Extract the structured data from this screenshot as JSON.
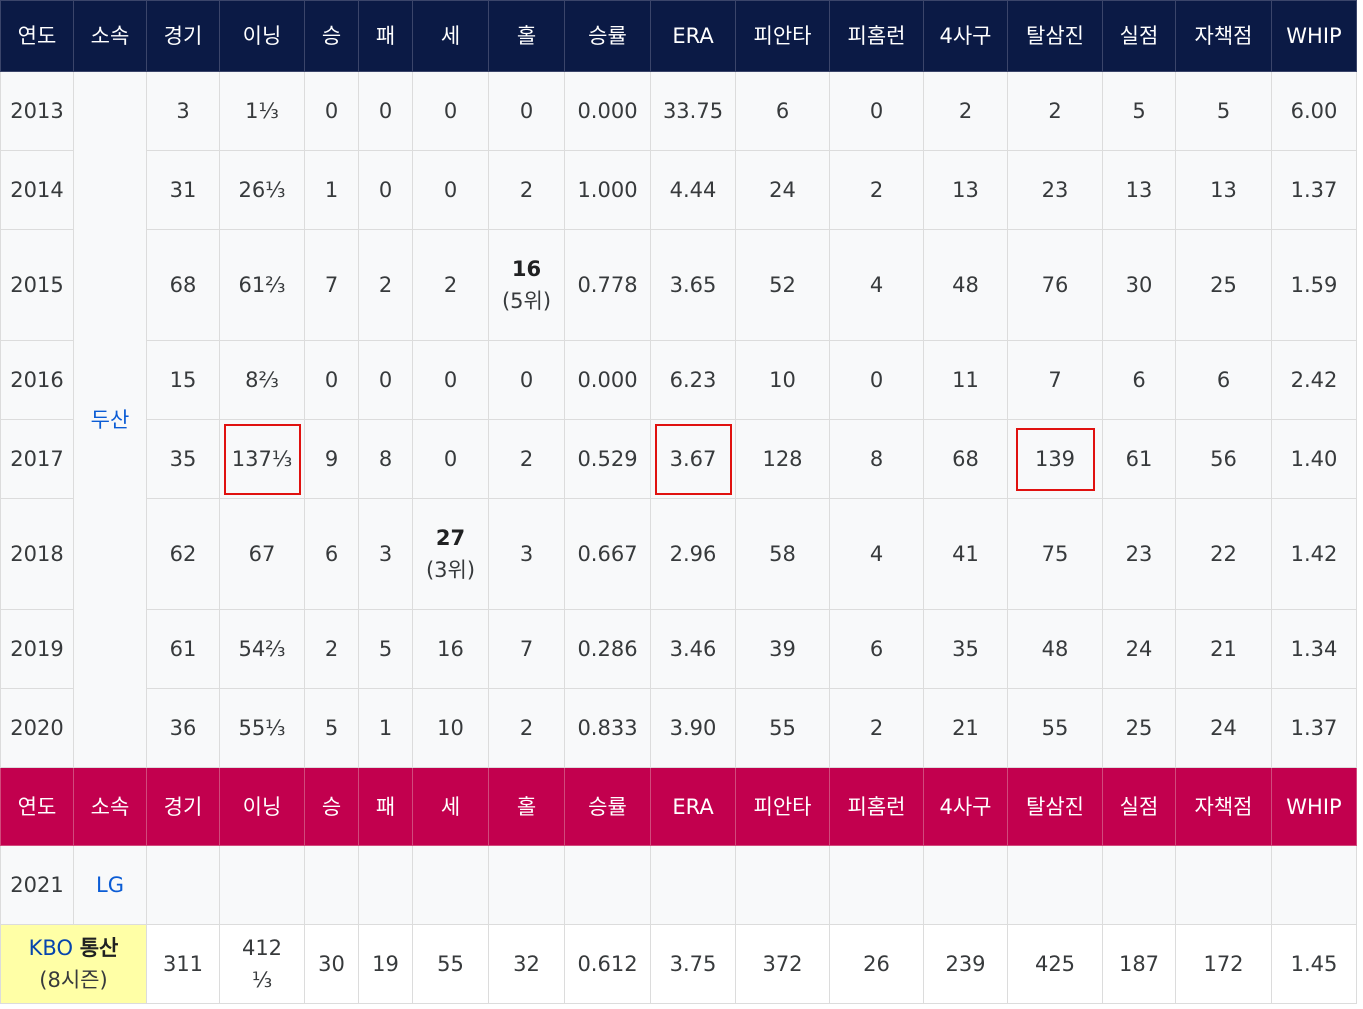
{
  "headers": [
    "연도",
    "소속",
    "경기",
    "이닝",
    "승",
    "패",
    "세",
    "홀",
    "승률",
    "ERA",
    "피안타",
    "피홈런",
    "4사구",
    "탈삼진",
    "실점",
    "자책점",
    "WHIP"
  ],
  "team_doosan": "두산",
  "team_lg": "LG",
  "rows": [
    {
      "year": "2013",
      "g": "3",
      "ip": "1⅓",
      "w": "0",
      "l": "0",
      "sv": "0",
      "hld_num": "0",
      "hld_rank": "",
      "pct": "0.000",
      "era": "33.75",
      "h": "6",
      "hr": "0",
      "bb": "2",
      "so": "2",
      "r": "5",
      "er": "5",
      "whip": "6.00"
    },
    {
      "year": "2014",
      "g": "31",
      "ip": "26⅓",
      "w": "1",
      "l": "0",
      "sv": "0",
      "hld_num": "2",
      "hld_rank": "",
      "pct": "1.000",
      "era": "4.44",
      "h": "24",
      "hr": "2",
      "bb": "13",
      "so": "23",
      "r": "13",
      "er": "13",
      "whip": "1.37"
    },
    {
      "year": "2015",
      "g": "68",
      "ip": "61⅔",
      "w": "7",
      "l": "2",
      "sv": "2",
      "hld_num": "16",
      "hld_rank": "(5위)",
      "pct": "0.778",
      "era": "3.65",
      "h": "52",
      "hr": "4",
      "bb": "48",
      "so": "76",
      "r": "30",
      "er": "25",
      "whip": "1.59"
    },
    {
      "year": "2016",
      "g": "15",
      "ip": "8⅔",
      "w": "0",
      "l": "0",
      "sv": "0",
      "hld_num": "0",
      "hld_rank": "",
      "pct": "0.000",
      "era": "6.23",
      "h": "10",
      "hr": "0",
      "bb": "11",
      "so": "7",
      "r": "6",
      "er": "6",
      "whip": "2.42"
    },
    {
      "year": "2017",
      "g": "35",
      "ip": "137⅓",
      "w": "9",
      "l": "8",
      "sv": "0",
      "hld_num": "2",
      "hld_rank": "",
      "pct": "0.529",
      "era": "3.67",
      "h": "128",
      "hr": "8",
      "bb": "68",
      "so": "139",
      "r": "61",
      "er": "56",
      "whip": "1.40"
    },
    {
      "year": "2018",
      "g": "62",
      "ip": "67",
      "w": "6",
      "l": "3",
      "sv_num": "27",
      "sv_rank": "(3위)",
      "hld_num": "3",
      "hld_rank": "",
      "pct": "0.667",
      "era": "2.96",
      "h": "58",
      "hr": "4",
      "bb": "41",
      "so": "75",
      "r": "23",
      "er": "22",
      "whip": "1.42"
    },
    {
      "year": "2019",
      "g": "61",
      "ip": "54⅔",
      "w": "2",
      "l": "5",
      "sv": "16",
      "hld_num": "7",
      "hld_rank": "",
      "pct": "0.286",
      "era": "3.46",
      "h": "39",
      "hr": "6",
      "bb": "35",
      "so": "48",
      "r": "24",
      "er": "21",
      "whip": "1.34"
    },
    {
      "year": "2020",
      "g": "36",
      "ip": "55⅓",
      "w": "5",
      "l": "1",
      "sv": "10",
      "hld_num": "2",
      "hld_rank": "",
      "pct": "0.833",
      "era": "3.90",
      "h": "55",
      "hr": "2",
      "bb": "21",
      "so": "55",
      "r": "25",
      "er": "24",
      "whip": "1.37"
    }
  ],
  "row2021": {
    "year": "2021"
  },
  "total": {
    "label_main": "KBO",
    "label_bold": "통산",
    "label_sub": "(8시즌)",
    "g": "311",
    "ip": "412⅓",
    "w": "30",
    "l": "19",
    "sv": "55",
    "hld": "32",
    "pct": "0.612",
    "era": "3.75",
    "h": "372",
    "hr": "26",
    "bb": "239",
    "so": "425",
    "r": "187",
    "er": "172",
    "whip": "1.45"
  },
  "colors": {
    "header_navy": "#0b1a45",
    "header_crimson": "#c2004e",
    "total_label_bg": "#ffffa6",
    "highlight_box": "#e0110f",
    "team_link": "#0b5cd5"
  }
}
